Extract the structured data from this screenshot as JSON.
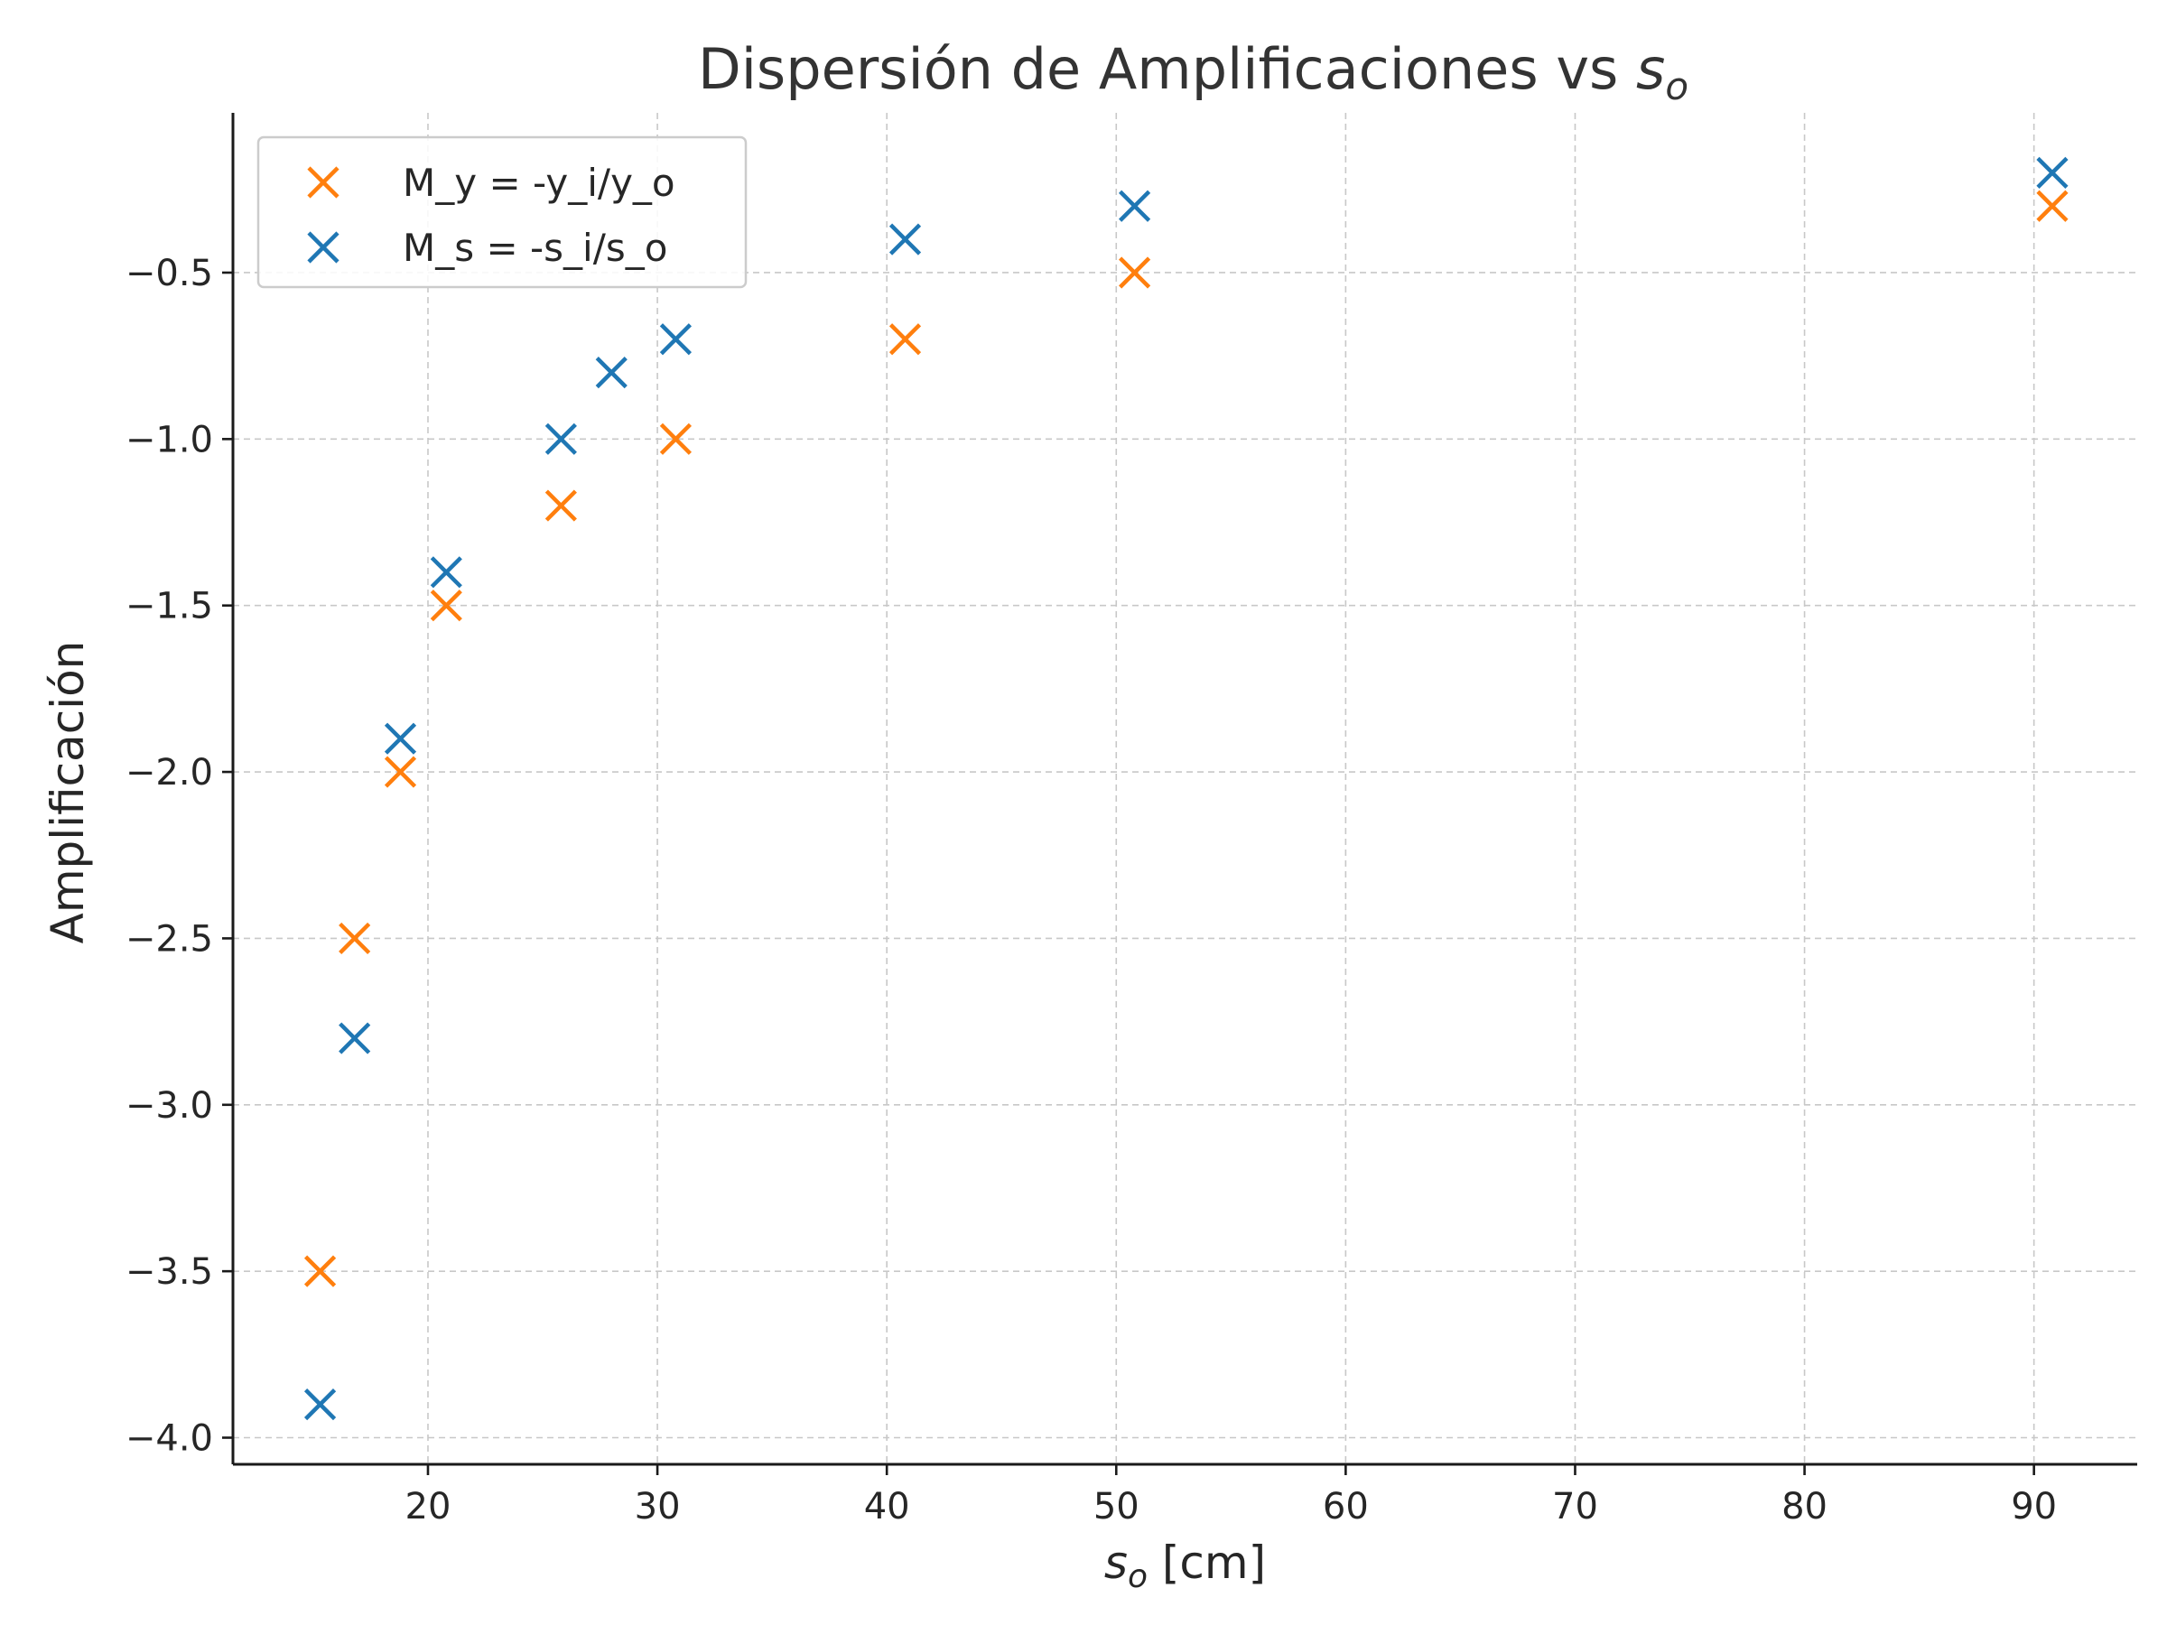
{
  "chart_data": {
    "type": "scatter",
    "title": "Dispersión de Amplificaciones vs ",
    "title_math": {
      "base": "s",
      "sub": "o"
    },
    "xlabel_math": {
      "base": "s",
      "sub": "o"
    },
    "xlabel_unit": " [cm]",
    "ylabel": "Amplificación",
    "xlim": [
      11.5,
      94.5
    ],
    "ylim": [
      -4.08,
      -0.02
    ],
    "xticks": [
      20,
      30,
      40,
      50,
      60,
      70,
      80,
      90
    ],
    "xtick_labels": [
      "20",
      "30",
      "40",
      "50",
      "60",
      "70",
      "80",
      "90"
    ],
    "yticks": [
      -4.0,
      -3.5,
      -3.0,
      -2.5,
      -2.0,
      -1.5,
      -1.0,
      -0.5
    ],
    "ytick_labels": [
      "−4.0",
      "−3.5",
      "−3.0",
      "−2.5",
      "−2.0",
      "−1.5",
      "−1.0",
      "−0.5"
    ],
    "grid": true,
    "legend_position": "top-left",
    "marker": "x",
    "series": [
      {
        "name": "M_y = -y_i/y_o",
        "color": "#ff7f0e",
        "x": [
          15.3,
          16.8,
          18.8,
          20.8,
          25.8,
          30.8,
          40.8,
          50.8,
          90.8
        ],
        "y": [
          -3.5,
          -2.5,
          -2.0,
          -1.5,
          -1.2,
          -1.0,
          -0.7,
          -0.5,
          -0.3
        ]
      },
      {
        "name": "M_s = -s_i/s_o",
        "color": "#1f77b4",
        "x": [
          15.3,
          16.8,
          18.8,
          20.8,
          25.8,
          28.0,
          30.8,
          40.8,
          50.8,
          90.8
        ],
        "y": [
          -3.9,
          -2.8,
          -1.9,
          -1.4,
          -1.0,
          -0.8,
          -0.7,
          -0.4,
          -0.3,
          -0.2
        ]
      }
    ]
  }
}
